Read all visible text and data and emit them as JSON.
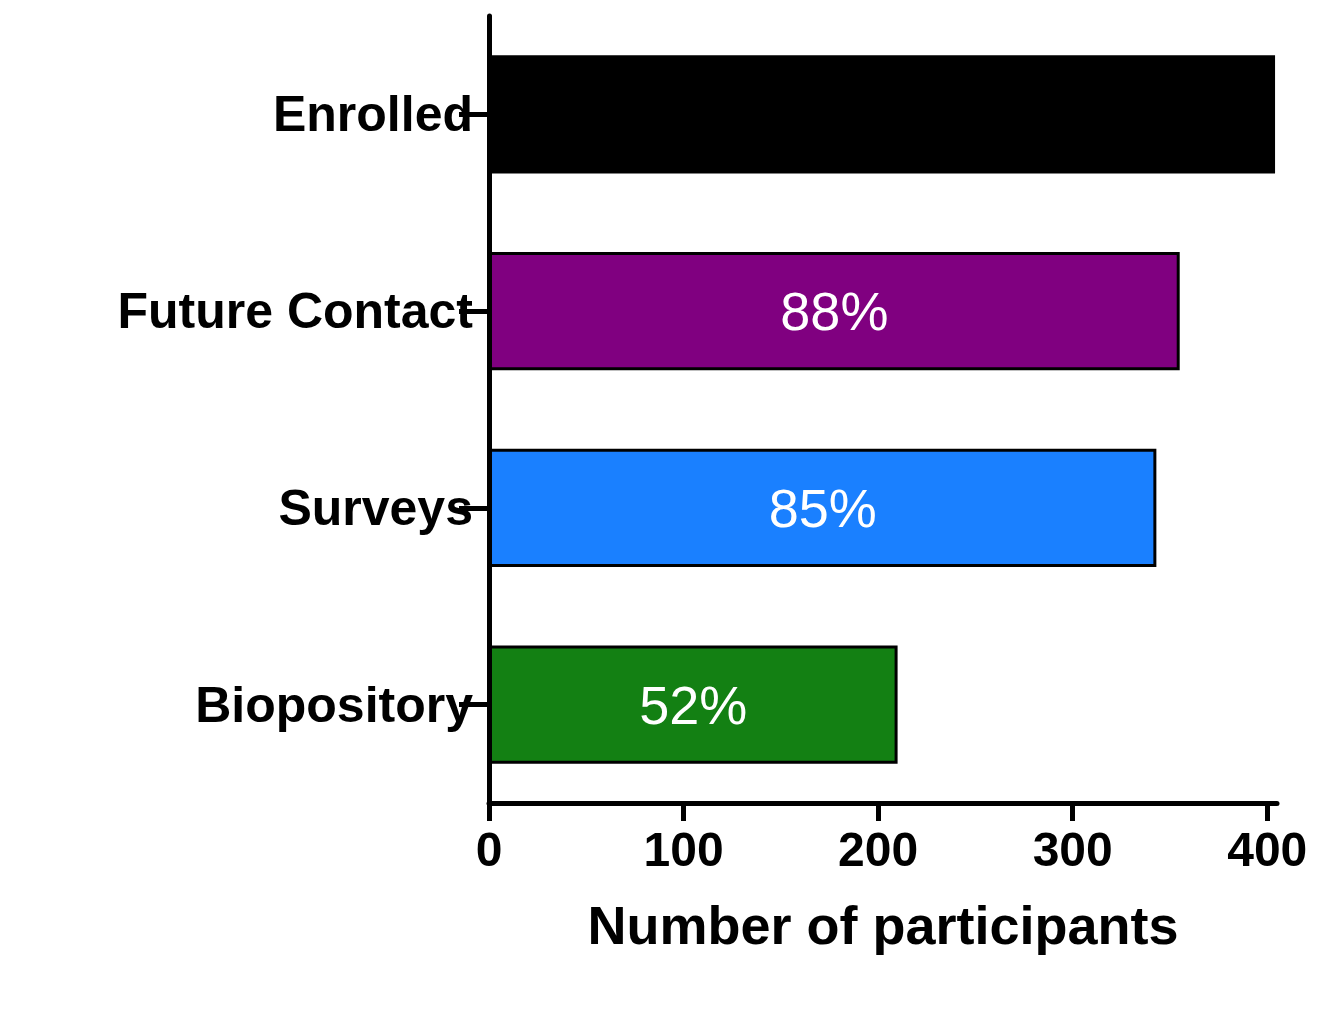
{
  "chart_data": {
    "type": "bar",
    "orientation": "horizontal",
    "xlabel": "Number of participants",
    "categories": [
      "Enrolled",
      "Future Contact",
      "Surveys",
      "Biopository"
    ],
    "values": [
      404,
      355,
      343,
      210
    ],
    "colors": [
      "#000000",
      "#800080",
      "#1a80ff",
      "#138013"
    ],
    "annotations": [
      "88%",
      "85%",
      "52%"
    ],
    "xlim": [
      0,
      405
    ],
    "xticks": [
      0,
      100,
      200,
      300,
      400
    ],
    "grid": false
  }
}
